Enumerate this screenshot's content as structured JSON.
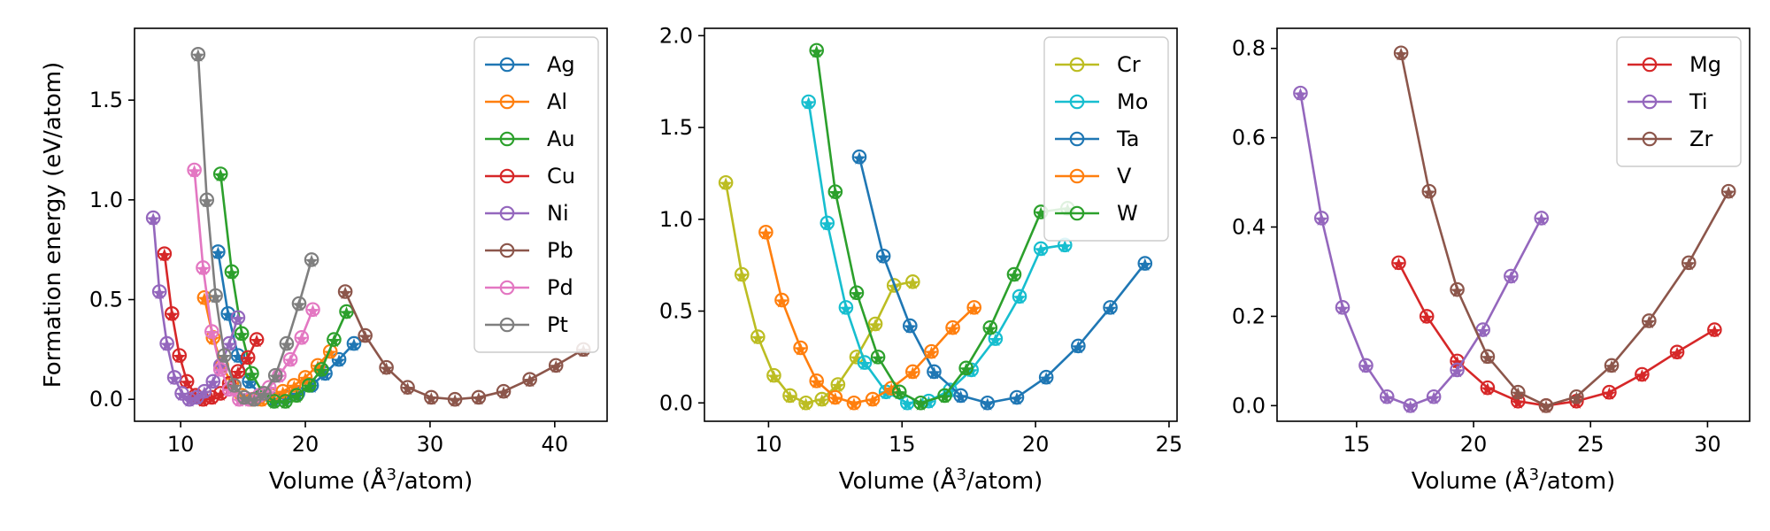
{
  "chart_data": [
    {
      "type": "line",
      "xlabel": "Volume (Å³/atom)",
      "xlabel_parts": {
        "pre": "Volume (Å",
        "sup": "3",
        "post": "/atom)"
      },
      "ylabel": "Formation energy (eV/atom)",
      "xlim": [
        6.3,
        44.2
      ],
      "ylim": [
        -0.11,
        1.86
      ],
      "xticks": [
        10,
        20,
        30,
        40
      ],
      "yticks": [
        0.0,
        0.5,
        1.0,
        1.5
      ],
      "ytick_labels": [
        "0.0",
        "0.5",
        "1.0",
        "1.5"
      ],
      "legend": "top-right",
      "markers": [
        "circle",
        "star"
      ],
      "series": [
        {
          "name": "Ag",
          "color": "#1f77b4",
          "x": [
            13.0,
            13.8,
            14.6,
            15.5,
            16.4,
            17.4,
            18.4,
            19.4,
            20.5,
            21.6,
            22.7,
            23.9
          ],
          "y": [
            0.74,
            0.43,
            0.22,
            0.09,
            0.02,
            0.0,
            0.01,
            0.03,
            0.07,
            0.13,
            0.2,
            0.28
          ]
        },
        {
          "name": "Al",
          "color": "#ff7f0e",
          "x": [
            11.9,
            12.6,
            13.3,
            14.1,
            14.9,
            15.7,
            16.5,
            17.3,
            18.2,
            19.1,
            20.0,
            21.0,
            22.0
          ],
          "y": [
            0.51,
            0.31,
            0.17,
            0.08,
            0.02,
            0.0,
            0.0,
            0.02,
            0.04,
            0.07,
            0.11,
            0.17,
            0.24
          ]
        },
        {
          "name": "Au",
          "color": "#2ca02c",
          "x": [
            13.2,
            14.1,
            14.9,
            15.7,
            16.6,
            17.5,
            18.4,
            19.3,
            20.3,
            21.3,
            22.3,
            23.3
          ],
          "y": [
            1.13,
            0.64,
            0.33,
            0.13,
            0.03,
            -0.01,
            -0.01,
            0.02,
            0.07,
            0.15,
            0.3,
            0.44
          ]
        },
        {
          "name": "Cu",
          "color": "#d62728",
          "x": [
            8.7,
            9.3,
            9.9,
            10.5,
            11.2,
            11.8,
            12.5,
            13.2,
            13.9,
            14.6,
            15.4,
            16.1
          ],
          "y": [
            0.73,
            0.43,
            0.22,
            0.09,
            0.02,
            0.0,
            0.01,
            0.03,
            0.08,
            0.14,
            0.21,
            0.3
          ]
        },
        {
          "name": "Ni",
          "color": "#9467bd",
          "x": [
            7.8,
            8.3,
            8.9,
            9.5,
            10.1,
            10.7,
            11.3,
            11.9,
            12.6,
            13.2,
            13.9,
            14.6
          ],
          "y": [
            0.91,
            0.54,
            0.28,
            0.11,
            0.03,
            0.0,
            0.01,
            0.04,
            0.09,
            0.17,
            0.28,
            0.41
          ]
        },
        {
          "name": "Pb",
          "color": "#8c564b",
          "x": [
            23.2,
            24.8,
            26.5,
            28.2,
            30.1,
            32.0,
            33.9,
            35.9,
            38.0,
            40.1,
            42.3
          ],
          "y": [
            0.54,
            0.32,
            0.16,
            0.06,
            0.01,
            0.0,
            0.01,
            0.04,
            0.1,
            0.17,
            0.25
          ]
        },
        {
          "name": "Pd",
          "color": "#e377c2",
          "x": [
            11.1,
            11.8,
            12.5,
            13.2,
            13.9,
            14.7,
            15.5,
            16.3,
            17.1,
            17.9,
            18.8,
            19.7,
            20.6
          ],
          "y": [
            1.15,
            0.66,
            0.34,
            0.15,
            0.05,
            0.0,
            0.0,
            0.02,
            0.06,
            0.12,
            0.2,
            0.31,
            0.45
          ]
        },
        {
          "name": "Pt",
          "color": "#7f7f7f",
          "x": [
            11.4,
            12.1,
            12.8,
            13.5,
            14.3,
            15.1,
            15.9,
            16.7,
            17.6,
            18.5,
            19.5,
            20.5
          ],
          "y": [
            1.73,
            1.0,
            0.52,
            0.22,
            0.07,
            0.01,
            0.0,
            0.03,
            0.12,
            0.28,
            0.48,
            0.7
          ]
        }
      ]
    },
    {
      "type": "line",
      "xlabel": "Volume (Å³/atom)",
      "xlabel_parts": {
        "pre": "Volume (Å",
        "sup": "3",
        "post": "/atom)"
      },
      "ylabel": "",
      "xlim": [
        7.6,
        25.3
      ],
      "ylim": [
        -0.1,
        2.04
      ],
      "xticks": [
        10,
        15,
        20,
        25
      ],
      "yticks": [
        0.0,
        0.5,
        1.0,
        1.5,
        2.0
      ],
      "ytick_labels": [
        "0.0",
        "0.5",
        "1.0",
        "1.5",
        "2.0"
      ],
      "legend": "top-right",
      "markers": [
        "circle",
        "star"
      ],
      "series": [
        {
          "name": "Cr",
          "color": "#bcbd22",
          "x": [
            8.4,
            9.0,
            9.6,
            10.2,
            10.8,
            11.4,
            12.0,
            12.6,
            13.3,
            14.0,
            14.7,
            15.4
          ],
          "y": [
            1.2,
            0.7,
            0.36,
            0.15,
            0.04,
            0.0,
            0.02,
            0.1,
            0.25,
            0.43,
            0.64,
            0.66
          ]
        },
        {
          "name": "Mo",
          "color": "#17becf",
          "x": [
            11.5,
            12.2,
            12.9,
            13.6,
            14.4,
            15.2,
            16.0,
            16.8,
            17.6,
            18.5,
            19.4,
            20.2,
            21.1
          ],
          "y": [
            1.64,
            0.98,
            0.52,
            0.22,
            0.06,
            0.0,
            0.01,
            0.07,
            0.18,
            0.35,
            0.58,
            0.84,
            0.86
          ]
        },
        {
          "name": "Ta",
          "color": "#1f77b4",
          "x": [
            13.4,
            14.3,
            15.3,
            16.2,
            17.2,
            18.2,
            19.3,
            20.4,
            21.6,
            22.8,
            24.1
          ],
          "y": [
            1.34,
            0.8,
            0.42,
            0.17,
            0.04,
            0.0,
            0.03,
            0.14,
            0.31,
            0.52,
            0.76
          ]
        },
        {
          "name": "V",
          "color": "#ff7f0e",
          "x": [
            9.9,
            10.5,
            11.2,
            11.8,
            12.5,
            13.2,
            13.9,
            14.6,
            15.4,
            16.1,
            16.9,
            17.7
          ],
          "y": [
            0.93,
            0.56,
            0.3,
            0.12,
            0.03,
            0.0,
            0.02,
            0.08,
            0.17,
            0.28,
            0.41,
            0.52
          ]
        },
        {
          "name": "W",
          "color": "#2ca02c",
          "x": [
            11.8,
            12.5,
            13.3,
            14.1,
            14.9,
            15.7,
            16.6,
            17.4,
            18.3,
            19.2,
            20.2,
            21.2
          ],
          "y": [
            1.92,
            1.15,
            0.6,
            0.25,
            0.06,
            0.0,
            0.04,
            0.19,
            0.41,
            0.7,
            1.04,
            1.06
          ]
        }
      ]
    },
    {
      "type": "line",
      "xlabel": "Volume (Å³/atom)",
      "xlabel_parts": {
        "pre": "Volume (Å",
        "sup": "3",
        "post": "/atom)"
      },
      "ylabel": "",
      "xlim": [
        11.6,
        31.8
      ],
      "ylim": [
        -0.035,
        0.845
      ],
      "xticks": [
        15,
        20,
        25,
        30
      ],
      "yticks": [
        0.0,
        0.2,
        0.4,
        0.6,
        0.8
      ],
      "ytick_labels": [
        "0.0",
        "0.2",
        "0.4",
        "0.6",
        "0.8"
      ],
      "legend": "top-right",
      "markers": [
        "circle",
        "star"
      ],
      "series": [
        {
          "name": "Mg",
          "color": "#d62728",
          "x": [
            16.8,
            18.0,
            19.3,
            20.6,
            21.9,
            23.1,
            24.4,
            25.8,
            27.2,
            28.7,
            30.3
          ],
          "y": [
            0.32,
            0.2,
            0.1,
            0.04,
            0.01,
            0.0,
            0.01,
            0.03,
            0.07,
            0.12,
            0.17
          ]
        },
        {
          "name": "Ti",
          "color": "#9467bd",
          "x": [
            12.6,
            13.5,
            14.4,
            15.4,
            16.3,
            17.3,
            18.3,
            19.3,
            20.4,
            21.6,
            22.9
          ],
          "y": [
            0.7,
            0.42,
            0.22,
            0.09,
            0.02,
            0.0,
            0.02,
            0.08,
            0.17,
            0.29,
            0.42
          ]
        },
        {
          "name": "Zr",
          "color": "#8c564b",
          "x": [
            16.9,
            18.1,
            19.3,
            20.6,
            21.9,
            23.1,
            24.4,
            25.9,
            27.5,
            29.2,
            30.9
          ],
          "y": [
            0.79,
            0.48,
            0.26,
            0.11,
            0.03,
            0.0,
            0.02,
            0.09,
            0.19,
            0.32,
            0.48
          ]
        }
      ]
    }
  ]
}
